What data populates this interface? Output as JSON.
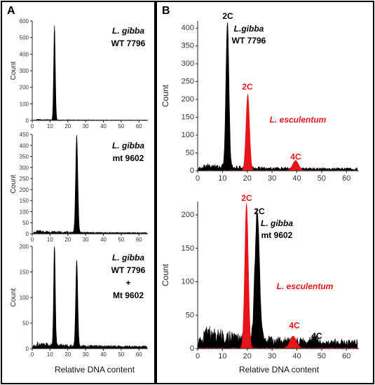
{
  "panels": [
    {
      "letter": "A",
      "xlabel": "Relative DNA content"
    },
    {
      "letter": "B",
      "xlabel": "Relative DNA content"
    }
  ],
  "colors": {
    "lgibba": "#000000",
    "lesculentum": "#e8141b"
  },
  "chart_data": [
    {
      "type": "area",
      "panel": "A",
      "xlim": [
        0,
        65
      ],
      "ylim": [
        0,
        600
      ],
      "xticks": [
        0,
        10,
        20,
        30,
        40,
        50,
        60
      ],
      "yticks": [
        0,
        100,
        200,
        300,
        400,
        500,
        600
      ],
      "ylabel": "Count",
      "annotations": [
        {
          "text": "L. gibba",
          "italic": true
        },
        {
          "text": "WT 7796",
          "italic": false
        }
      ],
      "series": [
        {
          "color": "#000000",
          "peaks": [
            {
              "x": 12.5,
              "y": 570,
              "w": 0.45
            }
          ],
          "baseline": 6
        }
      ]
    },
    {
      "type": "area",
      "panel": "A",
      "xlim": [
        0,
        65
      ],
      "ylim": [
        0,
        450
      ],
      "xticks": [
        0,
        10,
        20,
        30,
        40,
        50,
        60
      ],
      "yticks": [
        0,
        50,
        100,
        150,
        200,
        250,
        300,
        350,
        400,
        450
      ],
      "ylabel": "Count",
      "annotations": [
        {
          "text": "L. gibba",
          "italic": true
        },
        {
          "text": "mt 9602",
          "italic": false
        }
      ],
      "series": [
        {
          "color": "#000000",
          "peaks": [
            {
              "x": 25,
              "y": 440,
              "w": 0.6
            }
          ],
          "baseline": 14
        }
      ]
    },
    {
      "type": "area",
      "panel": "A",
      "xlim": [
        0,
        65
      ],
      "ylim": [
        0,
        200
      ],
      "xticks": [
        0,
        10,
        20,
        30,
        40,
        50,
        60
      ],
      "yticks": [
        0,
        50,
        100,
        150,
        200
      ],
      "ylabel": "Count",
      "annotations": [
        {
          "text": "L. gibba",
          "italic": true
        },
        {
          "text": "WT 7796",
          "italic": false
        },
        {
          "text": "+",
          "italic": false
        },
        {
          "text": "Mt 9602",
          "italic": false
        }
      ],
      "series": [
        {
          "color": "#000000",
          "peaks": [
            {
              "x": 12.5,
              "y": 205,
              "w": 0.45
            },
            {
              "x": 25,
              "y": 170,
              "w": 0.55
            }
          ],
          "baseline": 12
        }
      ]
    },
    {
      "type": "area",
      "panel": "B",
      "xlim": [
        0,
        65
      ],
      "ylim": [
        0,
        420
      ],
      "xticks": [
        0,
        10,
        20,
        30,
        40,
        50,
        60
      ],
      "yticks": [
        0,
        50,
        100,
        150,
        200,
        250,
        300,
        350,
        400
      ],
      "ylabel": "Count",
      "annotations": [
        {
          "text": "2C",
          "italic": false,
          "color": "#000000"
        },
        {
          "text": "L.gibba",
          "italic": true,
          "color": "#000000"
        },
        {
          "text": "WT 7796",
          "italic": false,
          "color": "#000000"
        },
        {
          "text": "2C",
          "italic": false,
          "color": "#e8141b"
        },
        {
          "text": "L. esculentum",
          "italic": true,
          "color": "#e8141b"
        },
        {
          "text": "4C",
          "italic": false,
          "color": "#e8141b"
        }
      ],
      "series": [
        {
          "color": "#000000",
          "peaks": [
            {
              "x": 12,
              "y": 410,
              "w": 0.6
            }
          ],
          "baseline": 18
        },
        {
          "color": "#e8141b",
          "peaks": [
            {
              "x": 20.2,
              "y": 215,
              "w": 0.7
            },
            {
              "x": 39.5,
              "y": 28,
              "w": 1.2
            }
          ],
          "baseline": 0
        }
      ]
    },
    {
      "type": "area",
      "panel": "B",
      "xlim": [
        0,
        65
      ],
      "ylim": [
        0,
        220
      ],
      "xticks": [
        0,
        10,
        20,
        30,
        40,
        50,
        60
      ],
      "yticks": [
        0,
        50,
        100,
        150,
        200
      ],
      "ylabel": "Count",
      "annotations": [
        {
          "text": "2C",
          "italic": false,
          "color": "#e8141b"
        },
        {
          "text": "2C",
          "italic": false,
          "color": "#000000"
        },
        {
          "text": "L. gibba",
          "italic": true,
          "color": "#000000"
        },
        {
          "text": "mt 9602",
          "italic": false,
          "color": "#000000"
        },
        {
          "text": "L. esculentum",
          "italic": true,
          "color": "#e8141b"
        },
        {
          "text": "4C",
          "italic": false,
          "color": "#e8141b"
        },
        {
          "text": "4C",
          "italic": false,
          "color": "#000000"
        }
      ],
      "series": [
        {
          "color": "#000000",
          "peaks": [
            {
              "x": 24,
              "y": 195,
              "w": 0.9
            },
            {
              "x": 47,
              "y": 8,
              "w": 1.5
            }
          ],
          "baseline": 30
        },
        {
          "color": "#e8141b",
          "peaks": [
            {
              "x": 19.7,
              "y": 218,
              "w": 0.7
            },
            {
              "x": 38.5,
              "y": 18,
              "w": 1.3
            }
          ],
          "baseline": 0
        }
      ]
    }
  ]
}
